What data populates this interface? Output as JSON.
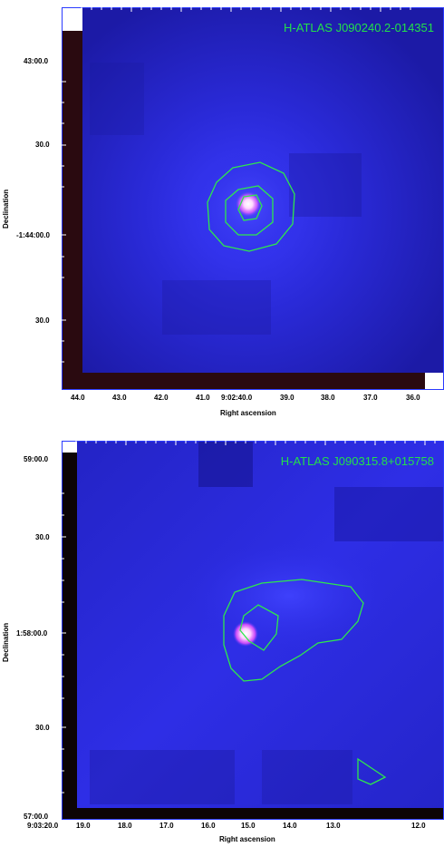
{
  "panels": [
    {
      "source_name": "H-ATLAS J090240.2-014351",
      "x_axis_label": "Right ascension",
      "y_axis_label": "Declination",
      "x_ticks": [
        "44.0",
        "43.0",
        "42.0",
        "41.0",
        "9:02:40.0",
        "39.0",
        "38.0",
        "37.0",
        "36.0"
      ],
      "y_ticks": [
        "43:00.0",
        "30.0",
        "-1:44:00.0",
        "30.0"
      ]
    },
    {
      "source_name": "H-ATLAS J090315.8+015758",
      "x_axis_label": "Right ascension",
      "y_axis_label": "Declination",
      "x_ticks": [
        "9:03:20.0",
        "19.0",
        "18.0",
        "17.0",
        "16.0",
        "15.0",
        "14.0",
        "13.0",
        "12.0"
      ],
      "y_ticks": [
        "59:00.0",
        "30.0",
        "1:58:00.0",
        "30.0",
        "57:00.0"
      ]
    }
  ],
  "colors": {
    "frame": "#2a3aff",
    "contour": "#2ee84c",
    "title": "#22e04a",
    "bright_source": "#ffffff",
    "source_halo": "#ff55ff"
  }
}
